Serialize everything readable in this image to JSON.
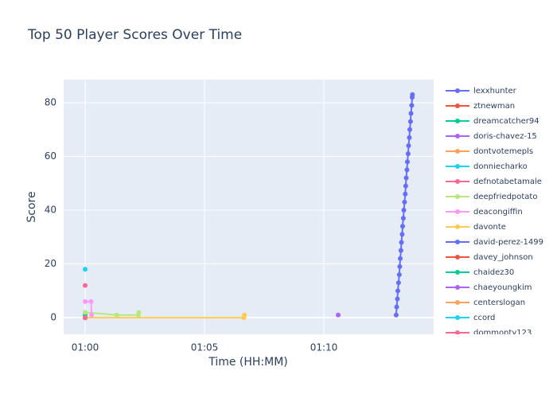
{
  "chart_data": {
    "type": "line",
    "title": "Top 50 Player Scores Over Time",
    "x_label": "Time (HH:MM)",
    "y_label": "Score",
    "xlim": [
      59.1,
      74.6
    ],
    "ylim": [
      -6.2,
      88.6
    ],
    "xticks": [
      {
        "value": 60,
        "label": "01:00"
      },
      {
        "value": 65,
        "label": "01:05"
      },
      {
        "value": 70,
        "label": "01:10"
      }
    ],
    "yticks": [
      0,
      20,
      40,
      60,
      80
    ],
    "grid": true,
    "legend": "right",
    "series": [
      {
        "name": "lexxhunter",
        "color": "#636efa",
        "x": [
          73.03,
          73.05,
          73.08,
          73.1,
          73.13,
          73.16,
          73.18,
          73.2,
          73.23,
          73.25,
          73.28,
          73.3,
          73.33,
          73.35,
          73.38,
          73.41,
          73.43,
          73.45,
          73.48,
          73.5,
          73.53,
          73.55,
          73.58,
          73.6,
          73.63,
          73.65,
          73.68,
          73.7,
          73.71
        ],
        "values": [
          1,
          4,
          7,
          10,
          13,
          16,
          19,
          22,
          25,
          28,
          31,
          34,
          37,
          40,
          43,
          46,
          49,
          52,
          55,
          58,
          61,
          64,
          67,
          70,
          73,
          76,
          79,
          82,
          83
        ]
      },
      {
        "name": "ztnewman",
        "color": "#EF553B",
        "x": [
          60
        ],
        "values": [
          0
        ]
      },
      {
        "name": "dreamcatcher94",
        "color": "#00cc96",
        "x": [
          60
        ],
        "values": [
          1
        ]
      },
      {
        "name": "doris-chavez-15",
        "color": "#ab63fa",
        "x": [
          70.6
        ],
        "values": [
          1
        ]
      },
      {
        "name": "dontvotemepls",
        "color": "#FFA15A",
        "x": [
          60
        ],
        "values": [
          0
        ]
      },
      {
        "name": "donniecharko",
        "color": "#19d3f3",
        "x": [
          60
        ],
        "values": [
          18
        ]
      },
      {
        "name": "defnotabetamale",
        "color": "#FF6692",
        "x": [
          60
        ],
        "values": [
          12
        ]
      },
      {
        "name": "deepfriedpotato",
        "color": "#B6E880",
        "x": [
          60,
          61.33,
          62.23,
          62.25
        ],
        "values": [
          2,
          1,
          1,
          2
        ]
      },
      {
        "name": "deacongiffin",
        "color": "#FF97FF",
        "x": [
          60,
          60.25,
          60.27
        ],
        "values": [
          6,
          6,
          1
        ]
      },
      {
        "name": "davonte",
        "color": "#FECB52",
        "x": [
          60,
          66.65,
          66.67
        ],
        "values": [
          0,
          0,
          1
        ]
      },
      {
        "name": "david-perez-1499",
        "color": "#636efa",
        "x": [
          60
        ],
        "values": [
          0
        ]
      },
      {
        "name": "davey_johnson",
        "color": "#EF553B",
        "x": [
          60
        ],
        "values": [
          0
        ]
      },
      {
        "name": "chaidez30",
        "color": "#00cc96",
        "x": [
          60
        ],
        "values": [
          0
        ]
      },
      {
        "name": "chaeyoungkim",
        "color": "#ab63fa",
        "x": [
          60
        ],
        "values": [
          0
        ]
      },
      {
        "name": "centerslogan",
        "color": "#FFA15A",
        "x": [
          60
        ],
        "values": [
          0
        ]
      },
      {
        "name": "ccord",
        "color": "#19d3f3",
        "x": [
          60
        ],
        "values": [
          0
        ]
      },
      {
        "name": "dommonty123",
        "color": "#FF6692",
        "x": [
          60
        ],
        "values": [
          0
        ]
      }
    ]
  }
}
